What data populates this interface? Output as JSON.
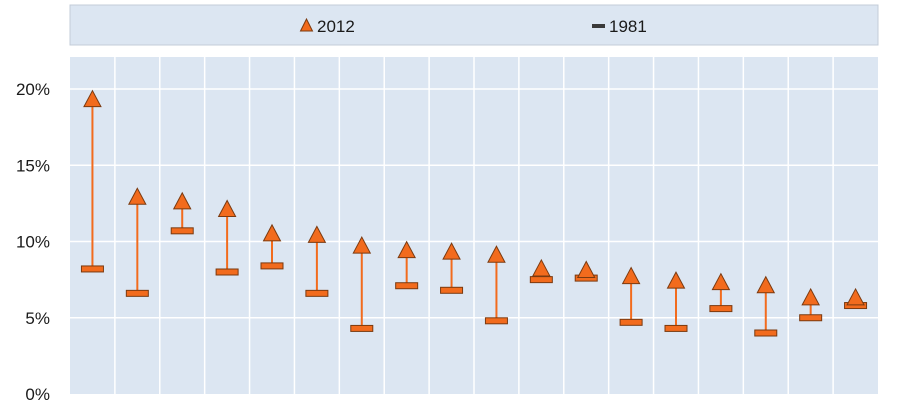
{
  "chart_data": {
    "type": "scatter",
    "title": "",
    "xlabel": "",
    "ylabel": "",
    "ylim": [
      0,
      20
    ],
    "yticks": [
      "0%",
      "5%",
      "10%",
      "15%",
      "20%"
    ],
    "ytick_values": [
      0,
      5,
      10,
      15,
      20
    ],
    "grid": true,
    "legend_position": "top",
    "x": [
      1,
      2,
      3,
      4,
      5,
      6,
      7,
      8,
      9,
      10,
      11,
      12,
      13,
      14,
      15,
      16,
      17,
      18
    ],
    "series": [
      {
        "name": "2012",
        "marker": "triangle",
        "color": "#f26b1d",
        "values": [
          19.3,
          12.9,
          12.6,
          12.1,
          10.5,
          10.4,
          9.7,
          9.4,
          9.3,
          9.1,
          8.2,
          8.1,
          7.7,
          7.4,
          7.3,
          7.1,
          6.3,
          6.3
        ]
      },
      {
        "name": "1981",
        "marker": "dash",
        "color": "#f26b1d",
        "values": [
          8.2,
          6.6,
          10.7,
          8.0,
          8.4,
          6.6,
          4.3,
          7.1,
          6.8,
          4.8,
          7.5,
          7.6,
          4.7,
          4.3,
          5.6,
          4.0,
          5.0,
          5.8
        ]
      }
    ],
    "colors": {
      "plot_background": "#dce6f2",
      "legend_background": "#dce6f2",
      "gridline": "#ffffff",
      "marker_fill": "#f26b1d",
      "marker_stroke": "#7a3a10",
      "connector": "#f26b1d"
    }
  }
}
